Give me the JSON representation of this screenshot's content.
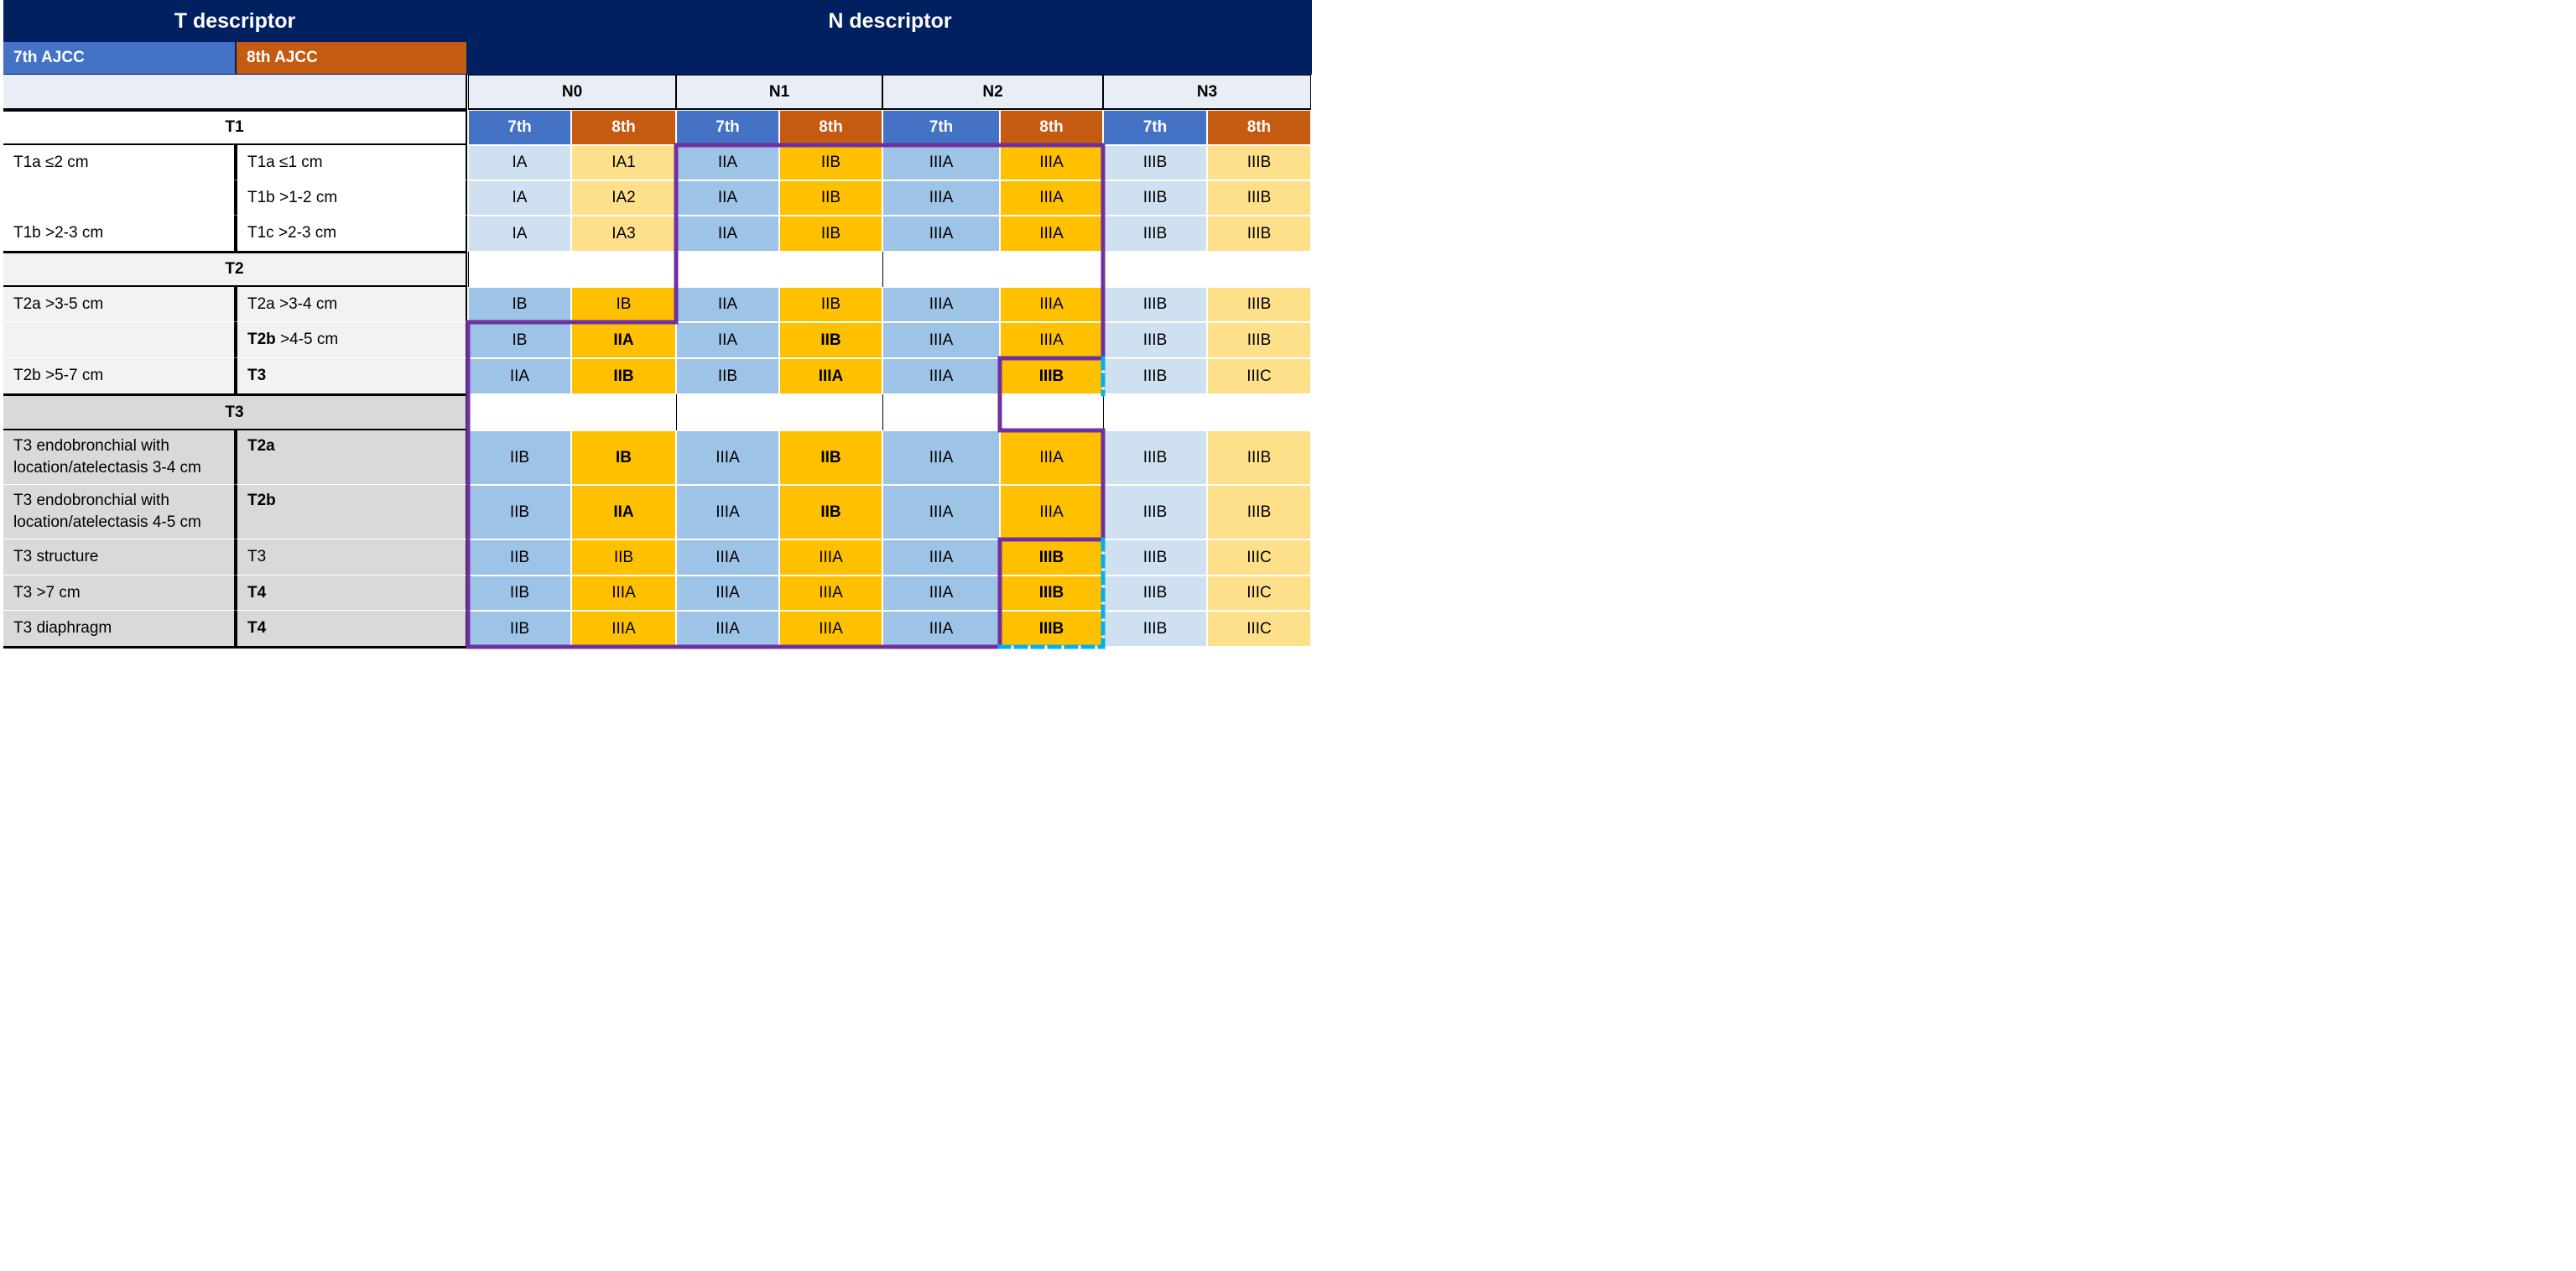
{
  "header": {
    "t_title": "T descriptor",
    "n_title": "N descriptor",
    "legend_7th": "7th AJCC",
    "legend_8th": "8th AJCC"
  },
  "n_groups": [
    "N0",
    "N1",
    "N2",
    "N3"
  ],
  "edition_labels": [
    "7th",
    "8th",
    "7th",
    "8th",
    "7th",
    "8th",
    "7th",
    "8th"
  ],
  "colors": {
    "navy": "#002060",
    "blue_7th": "#4472C4",
    "orange_8th": "#C55A11",
    "light_blue": "#DAE3F3",
    "mid_blue": "#9DC3E6",
    "pale_blue": "#CFE0F1",
    "light_yellow": "#FFE08A",
    "gold": "#FFC000",
    "purple": "#7030A0",
    "cyan": "#00B0F0"
  },
  "sections": {
    "t1": "T1",
    "t2": "T2",
    "t3": "T3"
  },
  "rows": [
    {
      "left7": "T1a ≤2 cm",
      "left8": "T1a ≤1 cm",
      "left8_bold": "",
      "cells": [
        "IA",
        "IA1",
        "IIA",
        "IIB",
        "IIIA",
        "IIIA",
        "IIIB",
        "IIIB"
      ],
      "bold": []
    },
    {
      "left7": "",
      "left8": "T1b >1-2 cm",
      "left8_bold": "",
      "cells": [
        "IA",
        "IA2",
        "IIA",
        "IIB",
        "IIIA",
        "IIIA",
        "IIIB",
        "IIIB"
      ],
      "bold": []
    },
    {
      "left7": "T1b >2-3 cm",
      "left8": "T1c >2-3 cm",
      "left8_bold": "",
      "cells": [
        "IA",
        "IA3",
        "IIA",
        "IIB",
        "IIIA",
        "IIIA",
        "IIIB",
        "IIIB"
      ],
      "bold": []
    },
    {
      "left7": "T2a >3-5 cm",
      "left8": "T2a >3-4 cm",
      "left8_bold": "",
      "cells": [
        "IB",
        "IB",
        "IIA",
        "IIB",
        "IIIA",
        "IIIA",
        "IIIB",
        "IIIB"
      ],
      "bold": []
    },
    {
      "left7": "",
      "left8": ">4-5 cm",
      "left8_bold": "T2b",
      "cells": [
        "IB",
        "IIA",
        "IIA",
        "IIB",
        "IIIA",
        "IIIA",
        "IIIB",
        "IIIB"
      ],
      "bold": [
        1,
        3
      ]
    },
    {
      "left7": "T2b >5-7 cm",
      "left8": "",
      "left8_bold": "T3",
      "cells": [
        "IIA",
        "IIB",
        "IIB",
        "IIIA",
        "IIIA",
        "IIIB",
        "IIIB",
        "IIIC"
      ],
      "bold": [
        1,
        3,
        5
      ]
    },
    {
      "left7": "T3 endobronchial with location/atelectasis 3-4 cm",
      "left8": "",
      "left8_bold": "T2a",
      "cells": [
        "IIB",
        "IB",
        "IIIA",
        "IIB",
        "IIIA",
        "IIIA",
        "IIIB",
        "IIIB"
      ],
      "bold": [
        1,
        3
      ]
    },
    {
      "left7": "T3 endobronchial with location/atelectasis  4-5 cm",
      "left8": "",
      "left8_bold": "T2b",
      "cells": [
        "IIB",
        "IIA",
        "IIIA",
        "IIB",
        "IIIA",
        "IIIA",
        "IIIB",
        "IIIB"
      ],
      "bold": [
        1,
        3
      ]
    },
    {
      "left7": "T3 structure",
      "left8": "T3",
      "left8_bold": "",
      "cells": [
        "IIB",
        "IIB",
        "IIIA",
        "IIIA",
        "IIIA",
        "IIIB",
        "IIIB",
        "IIIC"
      ],
      "bold": [
        5
      ]
    },
    {
      "left7": "T3 >7 cm",
      "left8": "",
      "left8_bold": "T4",
      "cells": [
        "IIB",
        "IIIA",
        "IIIA",
        "IIIA",
        "IIIA",
        "IIIB",
        "IIIB",
        "IIIC"
      ],
      "bold": [
        5
      ]
    },
    {
      "left7": "T3 diaphragm",
      "left8": "",
      "left8_bold": "T4",
      "cells": [
        "IIB",
        "IIIA",
        "IIIA",
        "IIIA",
        "IIIA",
        "IIIB",
        "IIIB",
        "IIIC"
      ],
      "bold": [
        5
      ]
    }
  ]
}
